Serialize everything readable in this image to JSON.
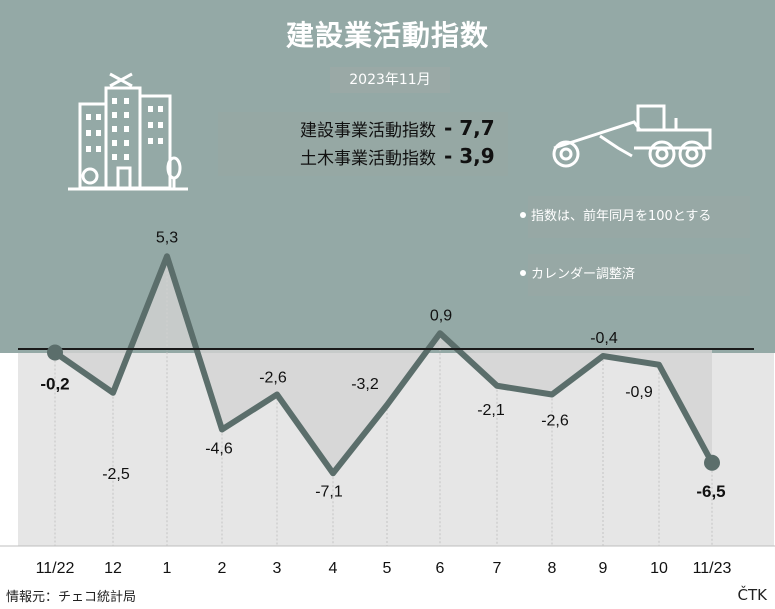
{
  "title": "建設業活動指数",
  "date": "2023年11月",
  "summary": [
    {
      "label": "建設事業活動指数",
      "value": "- 7,7"
    },
    {
      "label": "土木事業活動指数",
      "value": "- 3,9"
    }
  ],
  "notes": [
    "指数は、前年同月を100とする",
    "カレンダー調整済"
  ],
  "source": "情報元：チェコ統計局",
  "agency": "ČTK",
  "icons": [
    "apartment-building-icon",
    "road-grader-icon"
  ],
  "colors": {
    "header_bg": "#94a9a6",
    "line": "#5b6e6b",
    "negative_fill": "#e6e6e6",
    "positive_fill": "#d3d3d3"
  },
  "chart_data": {
    "type": "line",
    "categories": [
      "11/22",
      "12",
      "1",
      "2",
      "3",
      "4",
      "5",
      "6",
      "7",
      "8",
      "9",
      "10",
      "11/23"
    ],
    "values": [
      -0.2,
      -2.5,
      5.3,
      -4.6,
      -2.6,
      -7.1,
      -3.2,
      0.9,
      -2.1,
      -2.6,
      -0.4,
      -0.9,
      -6.5
    ],
    "data_labels": [
      "-0,2",
      "-2,5",
      "5,3",
      "-4,6",
      "-2,6",
      "-7,1",
      "-3,2",
      "0,9",
      "-2,1",
      "-2,6",
      "-0,4",
      "-0,9",
      "-6,5"
    ],
    "baseline": 0,
    "ylim": [
      -8.9,
      9.2
    ],
    "grid": false,
    "highlight_points": [
      0,
      12
    ]
  }
}
